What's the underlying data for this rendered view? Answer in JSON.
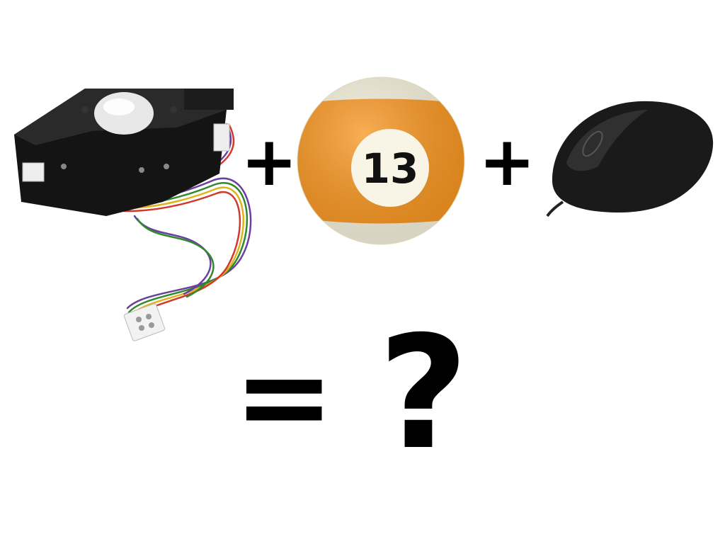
{
  "equation": {
    "plus_1": "+",
    "plus_2": "+",
    "equals": "=",
    "result": "?"
  },
  "items": [
    {
      "name": "trackball-module"
    },
    {
      "name": "pool-ball",
      "number": "13",
      "color": "#f7941d"
    },
    {
      "name": "computer-mouse",
      "color": "#1a1a1a"
    }
  ]
}
